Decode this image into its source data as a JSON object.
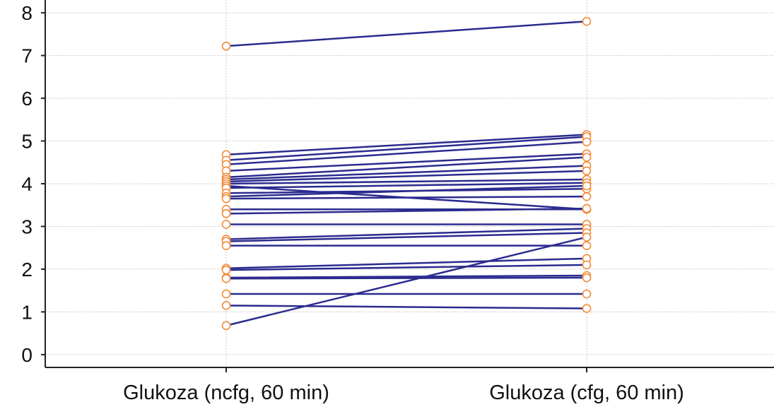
{
  "chart_data": {
    "type": "line",
    "title": "",
    "xlabel": "",
    "ylabel": "",
    "categories": [
      "Glukoza (ncfg, 60 min)",
      "Glukoza (cfg, 60 min)"
    ],
    "yticks": [
      0,
      1,
      2,
      3,
      4,
      5,
      6,
      7,
      8
    ],
    "ylim": [
      -0.3,
      8.3
    ],
    "grid": true,
    "legend": "none",
    "colors": {
      "line": "#2b2b8f",
      "marker_edge": "#f28c3a",
      "marker_fill": "#ffffff",
      "grid": "#c8c8c8",
      "axis": "#222222"
    },
    "pairs": [
      [
        7.22,
        7.8
      ],
      [
        4.68,
        5.15
      ],
      [
        4.55,
        5.1
      ],
      [
        4.45,
        4.98
      ],
      [
        4.3,
        4.7
      ],
      [
        4.15,
        4.62
      ],
      [
        4.1,
        4.42
      ],
      [
        4.05,
        4.3
      ],
      [
        4.0,
        4.1
      ],
      [
        3.95,
        3.4
      ],
      [
        3.9,
        4.02
      ],
      [
        3.78,
        3.88
      ],
      [
        3.7,
        3.95
      ],
      [
        3.65,
        3.7
      ],
      [
        3.4,
        3.4
      ],
      [
        3.3,
        3.42
      ],
      [
        3.05,
        3.05
      ],
      [
        2.7,
        2.95
      ],
      [
        2.65,
        2.85
      ],
      [
        2.55,
        2.55
      ],
      [
        2.02,
        2.25
      ],
      [
        1.98,
        2.1
      ],
      [
        1.8,
        1.85
      ],
      [
        1.78,
        1.8
      ],
      [
        1.42,
        1.42
      ],
      [
        1.15,
        1.08
      ],
      [
        0.68,
        2.75
      ]
    ]
  }
}
